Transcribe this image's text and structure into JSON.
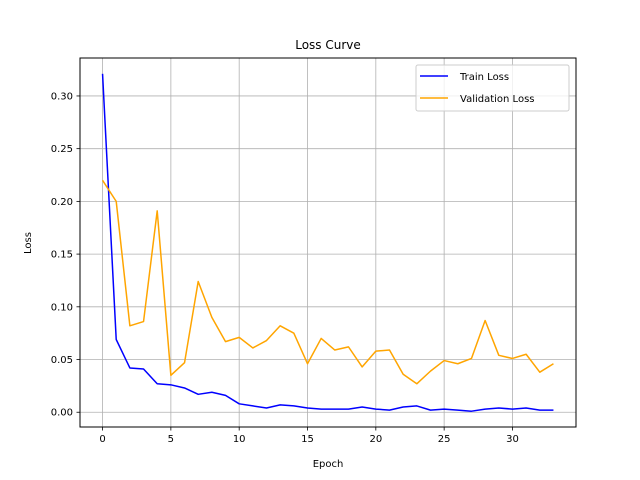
{
  "chart_data": {
    "type": "line",
    "title": "Loss Curve",
    "xlabel": "Epoch",
    "ylabel": "Loss",
    "xlim": [
      -1.65,
      34.65
    ],
    "ylim": [
      -0.014,
      0.336
    ],
    "xticks": [
      0,
      5,
      10,
      15,
      20,
      25,
      30
    ],
    "yticks": [
      0.0,
      0.05,
      0.1,
      0.15,
      0.2,
      0.25,
      0.3
    ],
    "grid": true,
    "legend_position": "top-right",
    "x": [
      0,
      1,
      2,
      3,
      4,
      5,
      6,
      7,
      8,
      9,
      10,
      11,
      12,
      13,
      14,
      15,
      16,
      17,
      18,
      19,
      20,
      21,
      22,
      23,
      24,
      25,
      26,
      27,
      28,
      29,
      30,
      31,
      32,
      33
    ],
    "series": [
      {
        "name": "Train Loss",
        "color": "#0000ff",
        "values": [
          0.321,
          0.069,
          0.042,
          0.041,
          0.027,
          0.026,
          0.023,
          0.017,
          0.019,
          0.016,
          0.008,
          0.006,
          0.004,
          0.007,
          0.006,
          0.004,
          0.003,
          0.003,
          0.003,
          0.005,
          0.003,
          0.002,
          0.005,
          0.006,
          0.002,
          0.003,
          0.002,
          0.001,
          0.003,
          0.004,
          0.003,
          0.004,
          0.002,
          0.002
        ]
      },
      {
        "name": "Validation Loss",
        "color": "#ffa500",
        "values": [
          0.22,
          0.2,
          0.082,
          0.086,
          0.191,
          0.035,
          0.047,
          0.124,
          0.09,
          0.067,
          0.071,
          0.061,
          0.068,
          0.082,
          0.075,
          0.046,
          0.07,
          0.059,
          0.062,
          0.043,
          0.058,
          0.059,
          0.036,
          0.027,
          0.039,
          0.049,
          0.046,
          0.051,
          0.087,
          0.054,
          0.051,
          0.055,
          0.038,
          0.046
        ]
      }
    ]
  }
}
